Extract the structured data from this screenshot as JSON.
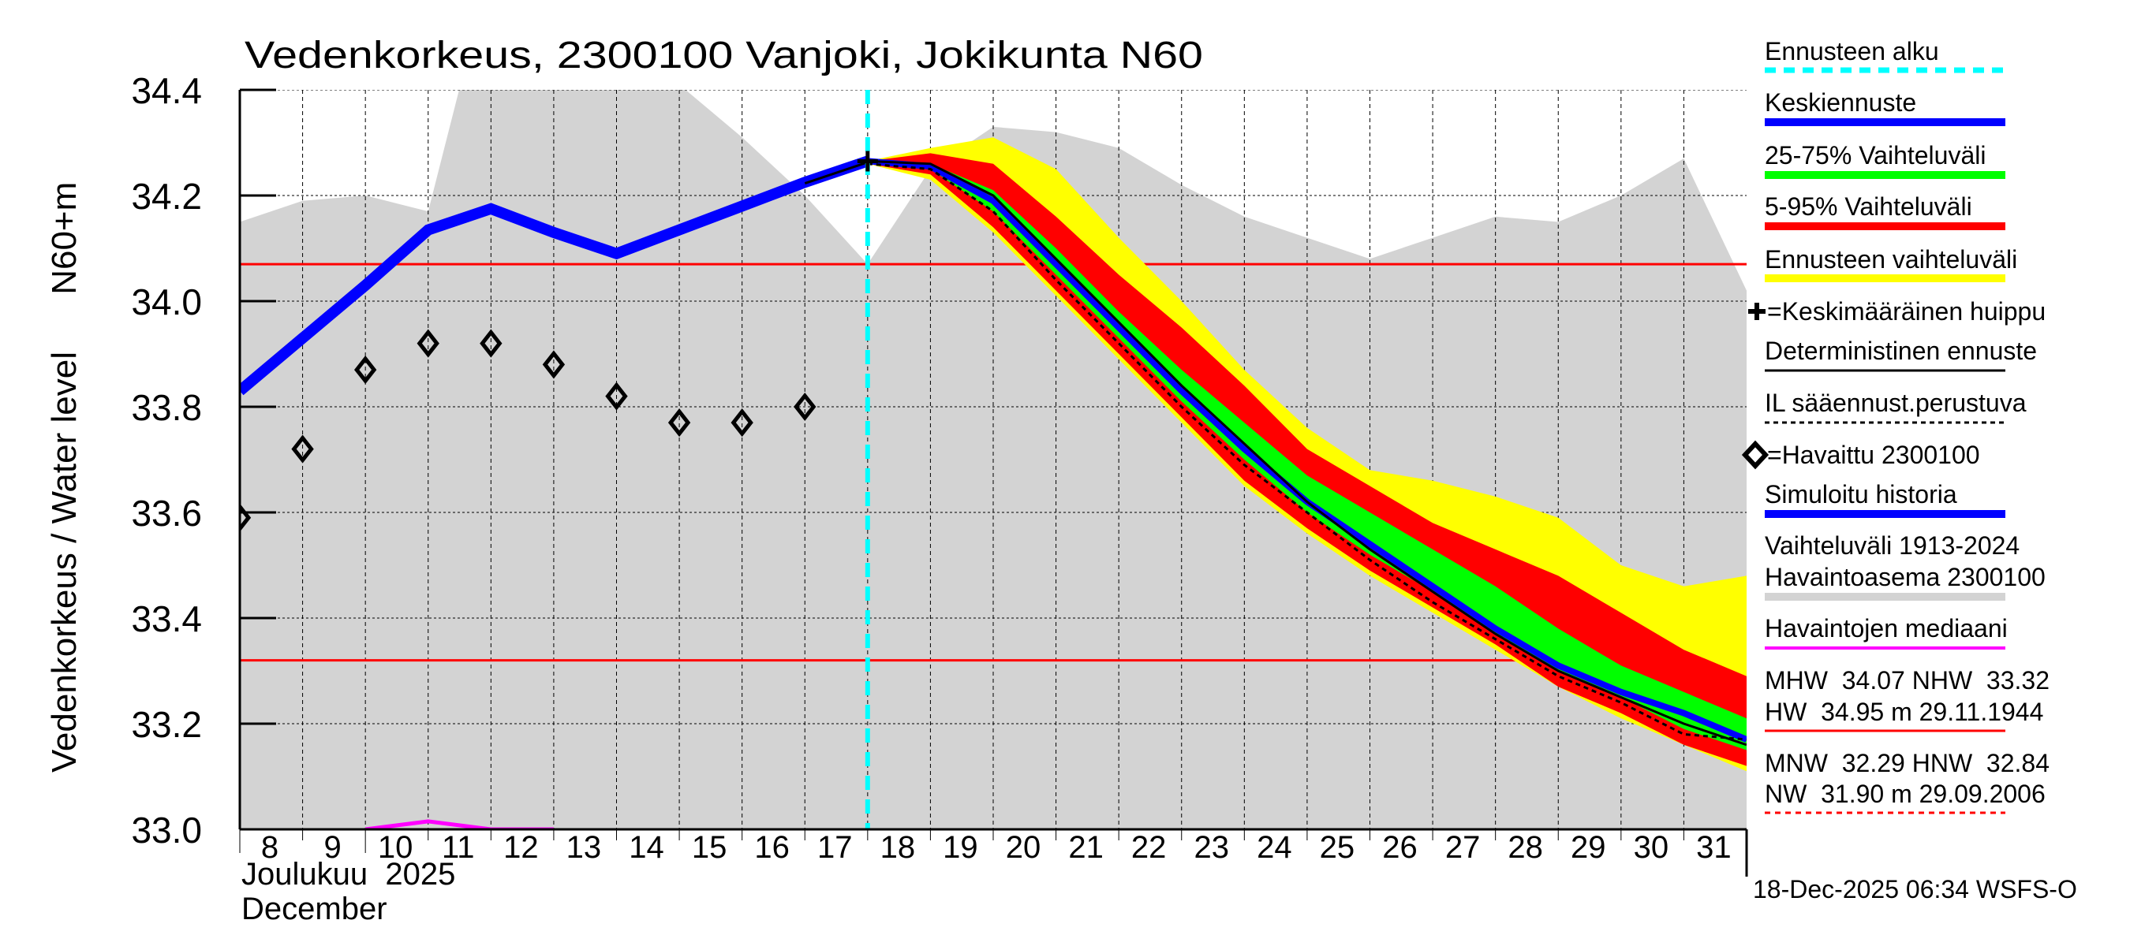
{
  "chart_data": {
    "type": "line",
    "title": "Vedenkorkeus, 2300100 Vanjoki, Jokikunta N60",
    "ylabel": "Vedenkorkeus / Water level",
    "yunit": "N60+m",
    "xlabel_line1": "Joulukuu  2025",
    "xlabel_line2": "December",
    "ylim": [
      33.0,
      34.4
    ],
    "yticks": [
      "33.0",
      "33.2",
      "33.4",
      "33.6",
      "33.8",
      "34.0",
      "34.2",
      "34.4"
    ],
    "xlim": [
      8,
      32
    ],
    "xticks": [
      "8",
      "9",
      "10",
      "11",
      "12",
      "13",
      "14",
      "15",
      "16",
      "17",
      "18",
      "19",
      "20",
      "21",
      "22",
      "23",
      "24",
      "25",
      "26",
      "27",
      "28",
      "29",
      "30",
      "31"
    ],
    "grid": true,
    "forecast_start_day": 18,
    "reference_lines": [
      {
        "name": "MHW",
        "value": 34.07,
        "color": "#ff0000"
      },
      {
        "name": "NHW",
        "value": 33.32,
        "color": "#ff0000"
      }
    ],
    "historical_range": {
      "x": [
        8,
        9,
        10,
        11,
        11.6,
        12,
        13,
        14,
        15,
        16,
        17,
        18,
        19,
        20,
        21,
        22,
        23,
        24,
        25,
        26,
        27,
        28,
        29,
        30,
        31,
        32
      ],
      "upper": [
        34.15,
        34.19,
        34.2,
        34.17,
        34.45,
        34.45,
        34.45,
        34.45,
        34.41,
        34.31,
        34.2,
        34.07,
        34.25,
        34.33,
        34.32,
        34.29,
        34.22,
        34.16,
        34.12,
        34.08,
        34.12,
        34.16,
        34.15,
        34.2,
        34.27,
        34.02
      ],
      "lower": 32.9,
      "color": "#d3d3d3"
    },
    "simulated_history": {
      "x": [
        8,
        9,
        10,
        11,
        12,
        13,
        14,
        15,
        16,
        17,
        18
      ],
      "y": [
        33.83,
        33.93,
        34.03,
        34.135,
        34.175,
        34.13,
        34.09,
        34.135,
        34.18,
        34.225,
        34.265
      ],
      "color": "#0000ff"
    },
    "observed": {
      "x": [
        8,
        9,
        10,
        11,
        12,
        13,
        14,
        15,
        16,
        17
      ],
      "y": [
        33.59,
        33.72,
        33.87,
        33.92,
        33.92,
        33.88,
        33.82,
        33.77,
        33.77,
        33.8
      ]
    },
    "median_observed": {
      "x": [
        10,
        11,
        12,
        13
      ],
      "y": [
        33.0,
        33.015,
        33.0,
        33.0
      ],
      "color": "#ff00ff"
    },
    "forecast_x": [
      18,
      19,
      20,
      21,
      22,
      23,
      24,
      25,
      26,
      27,
      28,
      29,
      30,
      31,
      32
    ],
    "range_full": {
      "upper": [
        34.265,
        34.29,
        34.31,
        34.25,
        34.12,
        34.0,
        33.87,
        33.76,
        33.68,
        33.66,
        33.63,
        33.59,
        33.5,
        33.46,
        33.48
      ],
      "lower": [
        34.26,
        34.23,
        34.13,
        34.01,
        33.89,
        33.77,
        33.65,
        33.56,
        33.48,
        33.41,
        33.34,
        33.27,
        33.21,
        33.16,
        33.11
      ],
      "color": "#ffff00"
    },
    "range_5_95": {
      "upper": [
        34.265,
        34.28,
        34.26,
        34.16,
        34.05,
        33.95,
        33.84,
        33.72,
        33.65,
        33.58,
        33.53,
        33.48,
        33.41,
        33.34,
        33.29
      ],
      "lower": [
        34.26,
        34.24,
        34.14,
        34.02,
        33.9,
        33.78,
        33.66,
        33.57,
        33.49,
        33.42,
        33.35,
        33.27,
        33.22,
        33.16,
        33.12
      ],
      "color": "#ff0000"
    },
    "range_25_75": {
      "upper": [
        34.265,
        34.26,
        34.21,
        34.1,
        33.98,
        33.87,
        33.77,
        33.67,
        33.6,
        33.53,
        33.46,
        33.38,
        33.31,
        33.26,
        33.21
      ],
      "lower": [
        34.26,
        34.25,
        34.17,
        34.05,
        33.93,
        33.81,
        33.7,
        33.6,
        33.52,
        33.45,
        33.37,
        33.3,
        33.25,
        33.19,
        33.15
      ],
      "color": "#00ff00"
    },
    "median_forecast": [
      34.265,
      34.255,
      34.19,
      34.07,
      33.95,
      33.83,
      33.72,
      33.62,
      33.54,
      33.46,
      33.38,
      33.31,
      33.26,
      33.22,
      33.17
    ],
    "deterministic": [
      34.265,
      34.26,
      34.2,
      34.08,
      33.96,
      33.84,
      33.73,
      33.62,
      33.53,
      33.45,
      33.37,
      33.3,
      33.25,
      33.2,
      33.16
    ],
    "il_weather_based": [
      34.26,
      34.25,
      34.17,
      34.04,
      33.92,
      33.8,
      33.69,
      33.6,
      33.51,
      33.43,
      33.36,
      33.29,
      33.24,
      33.18,
      33.17
    ],
    "mean_peak": {
      "x": 18,
      "y": 34.265
    }
  },
  "legend": {
    "forecast_start": "Ennusteen alku",
    "median_forecast": "Keskiennuste",
    "range_25_75": "25-75% Vaihteluväli",
    "range_5_95": "5-95% Vaihteluväli",
    "range_full": "Ennusteen vaihteluväli",
    "mean_peak": "=Keskimääräinen huippu",
    "deterministic": "Deterministinen ennuste",
    "il_weather": "IL sääennust.perustuva",
    "observed": "=Havaittu 2300100",
    "simulated": "Simuloitu historia",
    "hist_range_1": "Vaihteluväli 1913-2024",
    "hist_range_2": "Havaintoasema 2300100",
    "median_obs": "Havaintojen mediaani",
    "high_1": "MHW  34.07 NHW  33.32",
    "high_2": "HW  34.95 m 29.11.1944",
    "low_1": "MNW  32.29 HNW  32.84",
    "low_2": "NW  31.90 m 29.09.2006"
  },
  "footer": "18-Dec-2025 06:34 WSFS-O"
}
